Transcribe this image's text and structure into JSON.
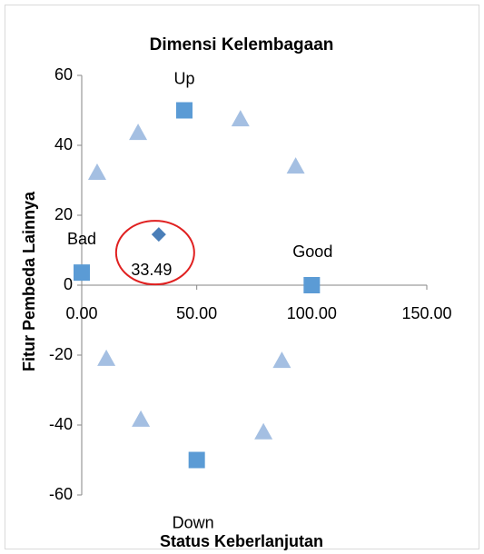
{
  "chart_data": {
    "type": "scatter",
    "title": "Dimensi Kelembagaan",
    "xlabel": "Status Keberlanjutan",
    "ylabel": "Fitur Pembeda Lainnya",
    "xlim": [
      0,
      150
    ],
    "ylim": [
      -60,
      60
    ],
    "xticks": [
      {
        "value": 0,
        "label": "0.00"
      },
      {
        "value": 50,
        "label": "50.00"
      },
      {
        "value": 100,
        "label": "100.00"
      },
      {
        "value": 150,
        "label": "150.00"
      }
    ],
    "yticks": [
      60,
      40,
      20,
      0,
      -20,
      -40,
      -60
    ],
    "grid": false,
    "series": [
      {
        "marker": "square",
        "color": "#5b9bd5",
        "x": [
          0,
          44.6,
          100,
          50
        ],
        "y": [
          3.6,
          50,
          0,
          -50
        ],
        "labels": [
          "Bad",
          "Up",
          "Good",
          "Down"
        ]
      },
      {
        "marker": "triangle",
        "color": "#a4bfe2",
        "x": [
          6.7,
          24.5,
          69,
          93,
          10.7,
          87,
          25.7,
          79
        ],
        "y": [
          32.2,
          43.6,
          47.5,
          34,
          -21,
          -21.6,
          -38.4,
          -42
        ]
      },
      {
        "marker": "diamond",
        "color": "#4a7eb8",
        "x": [
          33.49
        ],
        "y": [
          14.5
        ],
        "value_labels": [
          "33.49"
        ]
      }
    ]
  }
}
